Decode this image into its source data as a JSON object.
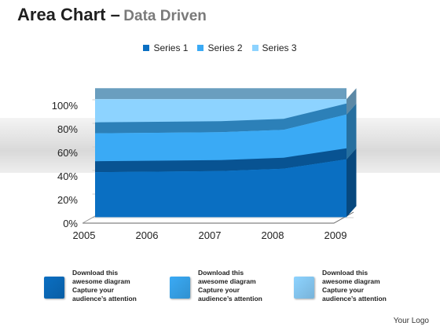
{
  "title": {
    "main": "Area Chart –",
    "sub": "Data Driven"
  },
  "chart_data": {
    "type": "area",
    "stacked": true,
    "x": [
      "2005",
      "2006",
      "2007",
      "2008",
      "2009"
    ],
    "y_ticks": [
      "0%",
      "20%",
      "40%",
      "60%",
      "80%",
      "100%"
    ],
    "ylim": [
      0,
      100
    ],
    "grid": true,
    "legend_position": "top-center",
    "series": [
      {
        "name": "Series 1",
        "cumulative_values": [
          38,
          38.5,
          39,
          41,
          49
        ],
        "color": "#0a6fc2"
      },
      {
        "name": "Series 2",
        "cumulative_values": [
          71,
          71.5,
          72,
          74,
          87
        ],
        "color": "#3aaaf5"
      },
      {
        "name": "Series 3",
        "cumulative_values": [
          100,
          100,
          100,
          100,
          100
        ],
        "color": "#8dd3ff"
      }
    ]
  },
  "cards": [
    {
      "lines": [
        "Download this",
        "awesome diagram",
        "Capture your",
        "audience’s attention"
      ],
      "color": "#0a6fc2"
    },
    {
      "lines": [
        "Download this",
        "awesome diagram",
        "Capture your",
        "audience’s attention"
      ],
      "color": "#3aaaf5"
    },
    {
      "lines": [
        "Download this",
        "awesome diagram",
        "Capture your",
        "audience’s attention"
      ],
      "color": "#8dd3ff"
    }
  ],
  "logo": "Your Logo"
}
